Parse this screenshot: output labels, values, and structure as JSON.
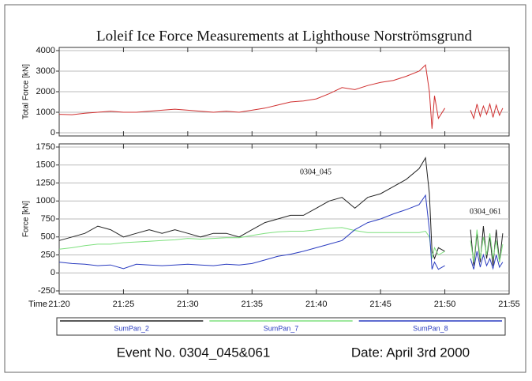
{
  "chart_data": [
    {
      "type": "line",
      "title": "Loleif  Ice Force Measurements at Lighthouse Norströmsgrund",
      "ylabel": "Total Force [kN]",
      "x": [
        20,
        21,
        22,
        23,
        24,
        25,
        26,
        27,
        28,
        29,
        30,
        31,
        32,
        33,
        34,
        35,
        36,
        37,
        38,
        39,
        40,
        41,
        42,
        43,
        44,
        45,
        46,
        47,
        48,
        48.5,
        48.8,
        49,
        49.2,
        49.5,
        50,
        51,
        52,
        52.25,
        52.5,
        52.75,
        53,
        53.25,
        53.5,
        53.75,
        54,
        54.25,
        54.5
      ],
      "values": [
        900,
        880,
        950,
        1000,
        1050,
        1000,
        1000,
        1050,
        1100,
        1150,
        1100,
        1050,
        1000,
        1050,
        1000,
        1100,
        1200,
        1350,
        1500,
        1550,
        1650,
        1900,
        2200,
        2100,
        2300,
        2450,
        2550,
        2750,
        3000,
        3300,
        2000,
        200,
        1800,
        700,
        1200,
        null,
        1100,
        700,
        1400,
        800,
        1300,
        900,
        1400,
        750,
        1350,
        850,
        1200
      ],
      "color": "#d03030",
      "xlim": [
        20,
        55
      ],
      "xticks": [
        20,
        25,
        30,
        35,
        40,
        45,
        50,
        55
      ],
      "ylim": [
        0,
        4000
      ],
      "yticks": [
        0,
        1000,
        2000,
        3000,
        4000
      ],
      "grid": true
    },
    {
      "type": "line",
      "ylabel": "Force [kN]",
      "xlabel": "Time",
      "x": [
        20,
        21,
        22,
        23,
        24,
        25,
        26,
        27,
        28,
        29,
        30,
        31,
        32,
        33,
        34,
        35,
        36,
        37,
        38,
        39,
        40,
        41,
        42,
        43,
        44,
        45,
        46,
        47,
        48,
        48.5,
        48.8,
        49,
        49.2,
        49.5,
        50,
        51,
        52,
        52.25,
        52.5,
        52.75,
        53,
        53.25,
        53.5,
        53.75,
        54,
        54.25,
        54.5
      ],
      "series": [
        {
          "name": "SumPan_2",
          "color": "#222222",
          "values": [
            450,
            500,
            550,
            650,
            600,
            500,
            550,
            600,
            550,
            600,
            550,
            500,
            550,
            550,
            500,
            600,
            700,
            750,
            800,
            800,
            900,
            1000,
            1050,
            900,
            1050,
            1100,
            1200,
            1300,
            1450,
            1600,
            1100,
            300,
            200,
            350,
            300,
            null,
            600,
            100,
            550,
            150,
            650,
            200,
            500,
            100,
            600,
            150,
            550
          ]
        },
        {
          "name": "SumPan_7",
          "color": "#7ee07e",
          "values": [
            330,
            350,
            380,
            400,
            400,
            420,
            430,
            440,
            450,
            460,
            480,
            470,
            480,
            490,
            490,
            520,
            550,
            570,
            580,
            580,
            600,
            620,
            630,
            590,
            560,
            560,
            560,
            560,
            560,
            580,
            500,
            200,
            350,
            250,
            300,
            null,
            450,
            150,
            600,
            200,
            500,
            250,
            550,
            200,
            450,
            150,
            400
          ]
        },
        {
          "name": "SumPan_8",
          "color": "#2a3cc0",
          "values": [
            150,
            130,
            120,
            100,
            110,
            60,
            120,
            110,
            100,
            110,
            120,
            110,
            100,
            120,
            110,
            130,
            180,
            230,
            260,
            300,
            350,
            400,
            450,
            600,
            700,
            750,
            820,
            880,
            950,
            1080,
            600,
            50,
            150,
            50,
            100,
            null,
            200,
            50,
            300,
            80,
            250,
            100,
            200,
            60,
            250,
            80,
            150
          ]
        }
      ],
      "annotations": [
        "0304_045",
        "0304_061"
      ],
      "xlim": [
        20,
        55
      ],
      "xticks": [
        {
          "value": 20,
          "label": "21:20"
        },
        {
          "value": 25,
          "label": "21:25"
        },
        {
          "value": 30,
          "label": "21:30"
        },
        {
          "value": 35,
          "label": "21:35"
        },
        {
          "value": 40,
          "label": "21:40"
        },
        {
          "value": 45,
          "label": "21:45"
        },
        {
          "value": 50,
          "label": "21:50"
        },
        {
          "value": 55,
          "label": "21:55"
        }
      ],
      "ylim": [
        -250,
        1750
      ],
      "yticks": [
        -250,
        0,
        250,
        500,
        750,
        1000,
        1250,
        1500,
        1750
      ],
      "grid": true
    }
  ],
  "footer": {
    "event": "Event No. 0304_045&061",
    "date": "Date: April 3rd 2000"
  }
}
